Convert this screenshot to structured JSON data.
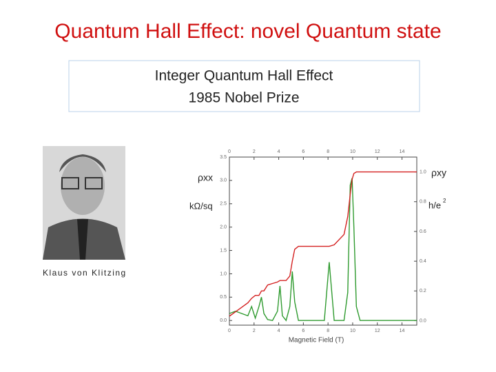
{
  "slide": {
    "title": "Quantum Hall Effect: novel Quantum state",
    "box": [
      "Integer Quantum Hall Effect",
      "1985 Nobel Prize"
    ],
    "caption": "Klaus von Klitzing"
  },
  "chart_data": {
    "type": "line",
    "ylabel": "ρxx",
    "yunit": "kΩ/sq",
    "y2label": "ρxy",
    "y2unit": "h/e",
    "y2unit_sup": "2",
    "xlabel": "Magnetic Field (T)",
    "x": [
      0,
      0.5,
      1,
      1.5,
      1.8,
      2.1,
      2.4,
      2.6,
      2.8,
      3.1,
      3.5,
      3.9,
      4.1,
      4.3,
      4.6,
      4.9,
      5.1,
      5.3,
      5.6,
      6.5,
      7.7,
      8.1,
      8.5,
      9.3,
      9.6,
      9.8,
      9.95,
      10.1,
      10.3,
      10.6,
      11.5,
      12.5,
      13.5,
      14.5,
      15.2
    ],
    "series": [
      {
        "name": "ρxx",
        "color": "#2e9a2e",
        "values": [
          0.15,
          0.2,
          0.15,
          0.1,
          0.3,
          0.05,
          0.3,
          0.5,
          0.15,
          0.02,
          0,
          0.2,
          0.74,
          0.1,
          0,
          0.3,
          1.05,
          0.4,
          0,
          0,
          0,
          1.25,
          0,
          0,
          0.6,
          2.9,
          3.05,
          2,
          0.3,
          0,
          0,
          0,
          0,
          0,
          0
        ]
      },
      {
        "name": "ρxy",
        "color": "#d42020",
        "axis": "y2",
        "values": [
          0.03,
          0.06,
          0.09,
          0.12,
          0.15,
          0.17,
          0.17,
          0.2,
          0.2,
          0.24,
          0.25,
          0.26,
          0.27,
          0.27,
          0.27,
          0.3,
          0.4,
          0.48,
          0.5,
          0.5,
          0.5,
          0.5,
          0.51,
          0.58,
          0.7,
          0.85,
          0.95,
          0.99,
          1,
          1,
          1,
          1,
          1,
          1,
          1
        ]
      }
    ],
    "xlim": [
      0,
      15.2
    ],
    "xticks": [
      0,
      2,
      4,
      6,
      8,
      10,
      12,
      14
    ],
    "ylim": [
      -0.1,
      3.5
    ],
    "yticks": [
      {
        "value": 0,
        "label": "0.0"
      },
      0.5,
      {
        "value": 1,
        "label": "1.0"
      },
      1.5,
      {
        "value": 2,
        "label": "2.0"
      },
      2.5,
      {
        "value": 3,
        "label": "3.0"
      },
      3.5
    ],
    "y2lim": [
      -0.03,
      1.1
    ],
    "y2ticks": [
      {
        "value": 0,
        "label": "0.0"
      },
      0.2,
      0.4,
      0.6,
      0.8,
      {
        "value": 1,
        "label": "1.0"
      }
    ]
  }
}
